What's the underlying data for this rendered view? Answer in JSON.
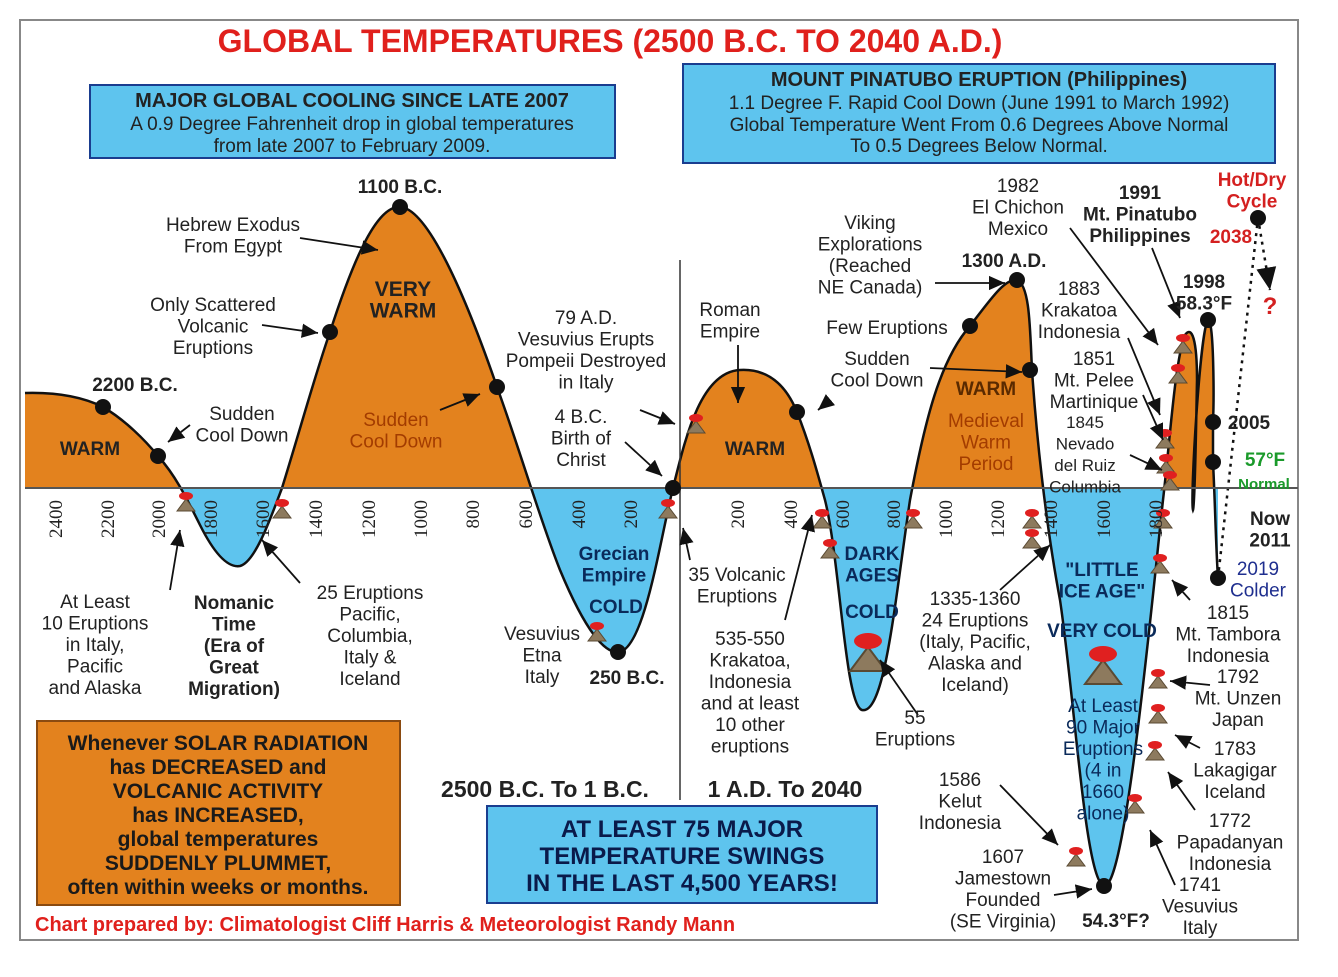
{
  "title": "GLOBAL TEMPERATURES (2500 B.C. TO 2040 A.D.)",
  "cooling_box": {
    "heading": "MAJOR GLOBAL COOLING SINCE LATE 2007",
    "lines": [
      "A 0.9 Degree Fahrenheit drop in global temperatures",
      "from late 2007 to February 2009."
    ]
  },
  "pinatubo_box": {
    "heading": "MOUNT PINATUBO ERUPTION (Philippines)",
    "lines": [
      "1.1 Degree F. Rapid Cool Down (June 1991 to March 1992)",
      "Global Temperature Went From 0.6 Degrees Above Normal",
      "To 0.5 Degrees Below Normal."
    ]
  },
  "axis_labels": [
    "2400",
    "2200",
    "2000",
    "1800",
    "1600",
    "1400",
    "1200",
    "1000",
    "800",
    "600",
    "400",
    "200",
    "200",
    "400",
    "600",
    "800",
    "1000",
    "1200",
    "1400",
    "1600",
    "1800"
  ],
  "annotations": [
    [
      "1100 B.C."
    ],
    [
      "2200 B.C."
    ],
    [
      "Hebrew Exodus",
      "From Egypt"
    ],
    [
      "Only Scattered",
      "Volcanic",
      "Eruptions"
    ],
    [
      "VERY",
      "WARM"
    ],
    [
      "WARM"
    ],
    [
      "Sudden",
      "Cool Down"
    ],
    [
      "Sudden",
      "Cool Down"
    ],
    [
      "79 A.D.",
      "Vesuvius Erupts",
      "Pompeii Destroyed",
      "in Italy"
    ],
    [
      "4 B.C.",
      "Birth of",
      "Christ"
    ],
    [
      "Roman",
      "Empire"
    ],
    [
      "WARM"
    ],
    [
      "Viking",
      "Explorations",
      "(Reached",
      "NE Canada)"
    ],
    [
      "1300 A.D."
    ],
    [
      "Few Eruptions"
    ],
    [
      "Sudden",
      "Cool Down"
    ],
    [
      "WARM"
    ],
    [
      "Medieval",
      "Warm",
      "Period"
    ],
    [
      "1982",
      "El Chichon",
      "Mexico"
    ],
    [
      "1991",
      "Mt. Pinatubo",
      "Philippines"
    ],
    [
      "Hot/Dry",
      "Cycle"
    ],
    [
      "2038"
    ],
    [
      "?"
    ],
    [
      "1883",
      "Krakatoa",
      "Indonesia"
    ],
    [
      "1851",
      "Mt. Pelee",
      "Martinique"
    ],
    [
      "1845",
      "Nevado",
      "del Ruiz",
      "Columbia"
    ],
    [
      "1998",
      "58.3°F"
    ],
    [
      "2005"
    ],
    [
      "57°F"
    ],
    [
      "Normal"
    ],
    [
      "Now",
      "2011"
    ],
    [
      "2019",
      "Colder"
    ],
    [
      "At Least",
      "10 Eruptions",
      "in Italy,",
      "Pacific",
      "and Alaska"
    ],
    [
      "Nomanic",
      "Time",
      "(Era of",
      "Great",
      "Migration)"
    ],
    [
      "25 Eruptions",
      "Pacific,",
      "Columbia,",
      "Italy &",
      "Iceland"
    ],
    [
      "Grecian",
      "Empire"
    ],
    [
      "COLD"
    ],
    [
      "Vesuvius",
      "Etna",
      "Italy"
    ],
    [
      "250 B.C."
    ],
    [
      "35 Volcanic",
      "Eruptions"
    ],
    [
      "535-550",
      "Krakatoa,",
      "Indonesia",
      "and at least",
      "10 other",
      "eruptions"
    ],
    [
      "DARK",
      "AGES"
    ],
    [
      "COLD"
    ],
    [
      "55",
      "Eruptions"
    ],
    [
      "1335-1360",
      "24 Eruptions",
      "(Italy, Pacific,",
      "Alaska and",
      "Iceland)"
    ],
    [
      "\"LITTLE",
      "ICE AGE\""
    ],
    [
      "VERY COLD"
    ],
    [
      "At Least",
      "90 Major",
      "Eruptions",
      "(4 in",
      "1660",
      "alone)"
    ],
    [
      "1586",
      "Kelut",
      "Indonesia"
    ],
    [
      "1607",
      "Jamestown",
      "Founded",
      "(SE Virginia)"
    ],
    [
      "54.3°F?"
    ],
    [
      "1815",
      "Mt. Tambora",
      "Indonesia"
    ],
    [
      "1792",
      "Mt. Unzen",
      "Japan"
    ],
    [
      "1783",
      "Lakagigar",
      "Iceland"
    ],
    [
      "1772",
      "Papadanyan",
      "Indonesia"
    ],
    [
      "1741",
      "Vesuvius",
      "Italy"
    ]
  ],
  "era_labels": [
    "2500 B.C. To 1 B.C.",
    "1 A.D. To 2040"
  ],
  "swings_box": [
    "AT LEAST 75 MAJOR",
    "TEMPERATURE SWINGS",
    "IN THE LAST 4,500 YEARS!"
  ],
  "solar_box": [
    "Whenever SOLAR RADIATION",
    "has DECREASED and",
    "VOLCANIC ACTIVITY",
    "has INCREASED,",
    "global temperatures",
    "SUDDENLY PLUMMET,",
    "often within weeks or months."
  ],
  "credit": "Chart prepared by: Climatologist Cliff Harris & Meteorologist Randy Mann"
}
